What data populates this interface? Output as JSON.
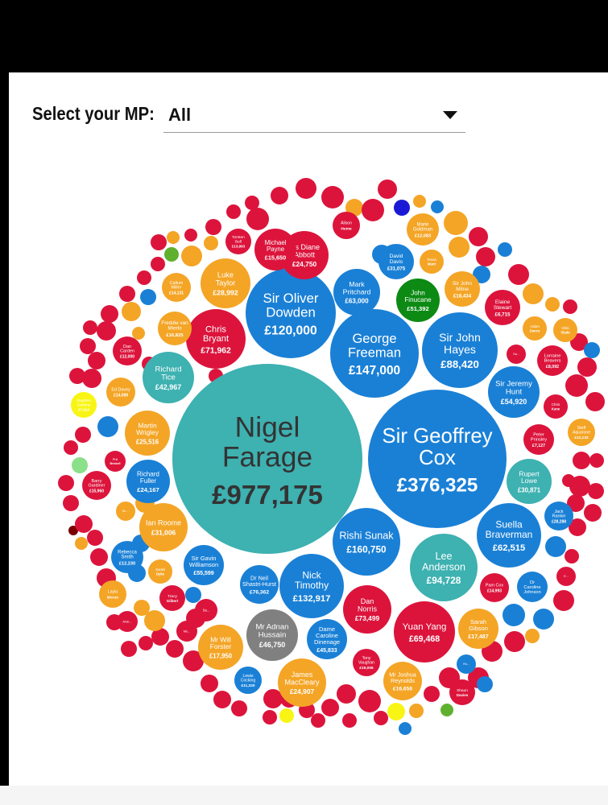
{
  "filter": {
    "label": "Select your MP:",
    "selected": "All"
  },
  "colors": {
    "red": "#dc143c",
    "blue": "#1a80d6",
    "teal": "#3eb1b1",
    "orange": "#f4a526",
    "green": "#0c8a14",
    "grey": "#808080",
    "yellow": "#f8f514",
    "lightgreen": "#8be08a",
    "darkred": "#7a0000",
    "navy": "#1a1ad6",
    "lime": "#60b030"
  },
  "chart_data": {
    "type": "bubble",
    "unit": "£",
    "items": [
      {
        "label": [
          "Nigel",
          "Farage"
        ],
        "value": "£977,175",
        "color": "teal"
      },
      {
        "label": [
          "Sir Geoffrey",
          "Cox"
        ],
        "value": "£376,325",
        "color": "blue"
      },
      {
        "label": [
          "Rishi Sunak"
        ],
        "value": "£160,750",
        "color": "blue"
      },
      {
        "label": [
          "George",
          "Freeman"
        ],
        "value": "£147,000",
        "color": "blue"
      },
      {
        "label": [
          "Nick",
          "Timothy"
        ],
        "value": "£132,917",
        "color": "blue"
      },
      {
        "label": [
          "Sir Oliver",
          "Dowden"
        ],
        "value": "£120,000",
        "color": "blue"
      },
      {
        "label": [
          "Lee",
          "Anderson"
        ],
        "value": "£94,728",
        "color": "teal"
      },
      {
        "label": [
          "Sir John",
          "Hayes"
        ],
        "value": "£88,420",
        "color": "blue"
      },
      {
        "label": [
          "Dan",
          "Norris"
        ],
        "value": "£73,499",
        "color": "red"
      },
      {
        "label": [
          "Chris",
          "Bryant"
        ],
        "value": "£71,962",
        "color": "red"
      },
      {
        "label": [
          "Yuan Yang"
        ],
        "value": "£69,468",
        "color": "red"
      },
      {
        "label": [
          "Mark",
          "Pritchard"
        ],
        "value": "£63,000",
        "color": "blue"
      },
      {
        "label": [
          "Suella",
          "Braverman"
        ],
        "value": "£62,515",
        "color": "blue"
      },
      {
        "label": [
          "Sir Jeremy",
          "Hunt"
        ],
        "value": "£54,920",
        "color": "blue"
      },
      {
        "label": [
          "John",
          "Finucane"
        ],
        "value": "£51,392",
        "color": "green"
      },
      {
        "label": [
          "Mr Adnan",
          "Hussain"
        ],
        "value": "£46,750",
        "color": "grey"
      },
      {
        "label": [
          "Richard",
          "Tice"
        ],
        "value": "£42,967",
        "color": "teal"
      },
      {
        "label": [
          "Ian Roome"
        ],
        "value": "£31,006",
        "color": "orange"
      },
      {
        "label": [
          "Rupert",
          "Lowe"
        ],
        "value": "£30,871",
        "color": "teal"
      },
      {
        "label": [
          "Luke",
          "Taylor"
        ],
        "value": "£28,992",
        "color": "orange"
      },
      {
        "label": [
          "Martin",
          "Wrigley"
        ],
        "value": "£25,516",
        "color": "orange"
      },
      {
        "label": [
          "James",
          "MacCleary"
        ],
        "value": "£24,907",
        "color": "orange"
      },
      {
        "label": [
          "Ms Diane",
          "Abbott"
        ],
        "value": "£24,750",
        "color": "red"
      },
      {
        "label": [
          "Richard",
          "Fuller"
        ],
        "value": "£24,167",
        "color": "blue"
      },
      {
        "label": [
          "Sir John",
          "Milne"
        ],
        "value": "£18,434",
        "color": "orange"
      },
      {
        "label": [
          "Mr Will",
          "Forster"
        ],
        "value": "£17,950",
        "color": "orange"
      },
      {
        "label": [
          "Sarah",
          "Gibson"
        ],
        "value": "£17,487",
        "color": "orange"
      },
      {
        "label": [
          "Michael",
          "Payne"
        ],
        "value": "£15,650",
        "color": "red"
      },
      {
        "label": [
          "Sir Gavin",
          "Williamson"
        ],
        "value": "£55,599",
        "color": "blue"
      },
      {
        "label": [
          "Dame",
          "Caroline",
          "Dinenage"
        ],
        "value": "£45,833",
        "color": "blue"
      },
      {
        "label": [
          "Dr Neil",
          "Shastri-Hurst"
        ],
        "value": "£76,362",
        "color": "blue"
      },
      {
        "label": [
          "David",
          "Davis"
        ],
        "value": "£31,075",
        "color": "blue"
      },
      {
        "label": [
          "Callum",
          "Miller"
        ],
        "value": "£14,131",
        "color": "orange"
      },
      {
        "label": [
          "Freddie van",
          "Mierlo"
        ],
        "value": "£16,825",
        "color": "orange"
      },
      {
        "label": [
          "Ed Davey"
        ],
        "value": "£14,089",
        "color": "orange"
      },
      {
        "label": [
          "Stephen",
          "Gethins"
        ],
        "value": "£7,813",
        "color": "yellow"
      },
      {
        "label": [
          "Dan",
          "Carden"
        ],
        "value": "£12,000",
        "color": "red"
      },
      {
        "label": [
          "Barry",
          "Gardiner"
        ],
        "value": "£15,960",
        "color": "red"
      },
      {
        "label": [
          "Rebecca",
          "Smith"
        ],
        "value": "£12,230",
        "color": "blue"
      },
      {
        "label": [
          "Lewis",
          "Cocking"
        ],
        "value": "£11,320",
        "color": "blue"
      },
      {
        "label": [
          "Tony",
          "Vaughan"
        ],
        "value": "£19,006",
        "color": "red"
      },
      {
        "label": [
          "Mr Joshua",
          "Reynolds"
        ],
        "value": "£16,656",
        "color": "orange"
      },
      {
        "label": [
          "Elaine",
          "Stewart"
        ],
        "value": "£6,715",
        "color": "red"
      },
      {
        "label": [
          "Marie",
          "Goldman"
        ],
        "value": "£12,083",
        "color": "orange"
      },
      {
        "label": [
          "Lorraine",
          "Beavers"
        ],
        "value": "£8,092",
        "color": "red"
      },
      {
        "label": [
          "Steff",
          "Aquarone"
        ],
        "value": "£12,132",
        "color": "orange"
      },
      {
        "label": [
          "Peter",
          "Prinsley"
        ],
        "value": "£7,127",
        "color": "red"
      },
      {
        "label": [
          "Jack",
          "Rankin"
        ],
        "value": "£28,288",
        "color": "blue"
      },
      {
        "label": [
          "Pam Cox"
        ],
        "value": "£14,993",
        "color": "red"
      },
      {
        "label": [
          "Dr",
          "Caroline",
          "Johnson"
        ],
        "value": "",
        "color": "blue"
      },
      {
        "label": [
          "Torsten",
          "Bell"
        ],
        "value": "£13,993",
        "color": "red"
      },
      {
        "label": [
          "Alison"
        ],
        "value": "Hume",
        "color": "red"
      },
      {
        "label": [
          "Tessa"
        ],
        "value": "Munt",
        "color": "orange"
      },
      {
        "label": [
          "Adam"
        ],
        "value": "Dance",
        "color": "orange"
      },
      {
        "label": [
          "Vikki"
        ],
        "value": "Slade",
        "color": "orange"
      },
      {
        "label": [
          "Chris"
        ],
        "value": "Kane",
        "color": "red"
      },
      {
        "label": [
          "Sarah"
        ],
        "value": "Dyke",
        "color": "orange"
      },
      {
        "label": [
          "Tracy"
        ],
        "value": "Gilbert",
        "color": "red"
      },
      {
        "label": [
          "Layla"
        ],
        "value": "Moran",
        "color": "orange"
      },
      {
        "label": [
          "Shaun"
        ],
        "value": "Davies",
        "color": "red"
      },
      {
        "label": [
          "Phil"
        ],
        "value": "Brickell",
        "color": "red"
      },
      {
        "label": [
          "Mr ..."
        ],
        "value": "",
        "color": "orange"
      },
      {
        "label": [
          "Sa..."
        ],
        "value": "",
        "color": "red"
      },
      {
        "label": [
          "Andr..."
        ],
        "value": "",
        "color": "red"
      },
      {
        "label": [
          "Ms..."
        ],
        "value": "",
        "color": "red"
      },
      {
        "label": [
          "E..."
        ],
        "value": "",
        "color": "red"
      },
      {
        "label": [
          "Ro..."
        ],
        "value": "",
        "color": "blue"
      },
      {
        "label": [
          "Sa..."
        ],
        "value": "",
        "color": "red"
      },
      {
        "label": [
          "Bl..."
        ],
        "value": "",
        "color": "red"
      }
    ]
  }
}
